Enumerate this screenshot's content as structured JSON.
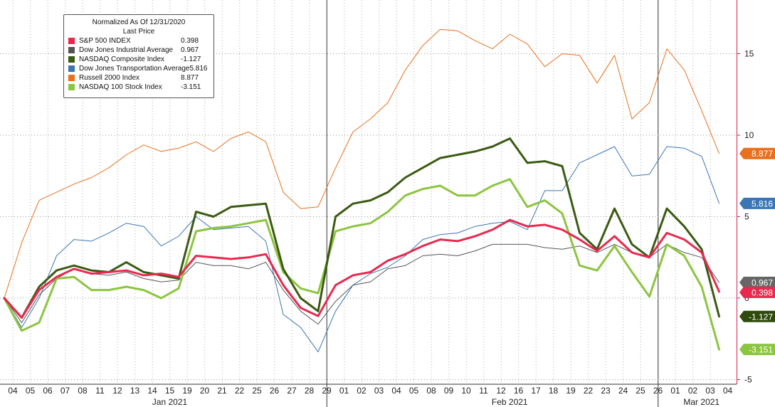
{
  "chart_data": {
    "type": "line",
    "title": "Normalized As Of 12/31/2020",
    "subtitle": "Last Price",
    "dates": [
      "04",
      "05",
      "06",
      "07",
      "08",
      "11",
      "12",
      "13",
      "14",
      "15",
      "19",
      "20",
      "21",
      "22",
      "25",
      "26",
      "27",
      "28",
      "29",
      "01",
      "02",
      "03",
      "04",
      "05",
      "08",
      "09",
      "10",
      "11",
      "12",
      "16",
      "17",
      "18",
      "19",
      "22",
      "23",
      "24",
      "25",
      "26",
      "01",
      "02",
      "03",
      "04"
    ],
    "month_labels": [
      {
        "label": "Jan 2021",
        "center_index": 9
      },
      {
        "label": "Feb 2021",
        "center_index": 28.5
      },
      {
        "label": "Mar 2021",
        "center_index": 39.5
      }
    ],
    "month_starts": [
      0,
      19,
      38
    ],
    "ylim": [
      -5,
      19
    ],
    "y_ticks": [
      "-5",
      "0",
      "5",
      "10",
      "15"
    ],
    "y_tick_values": [
      -5,
      0,
      5,
      10,
      15
    ],
    "grid": true,
    "legend_position": "top-left",
    "series": [
      {
        "name": "S&P 500 INDEX",
        "color": "#e8294f",
        "width": 3,
        "last": "0.398",
        "label_color": "#e8294f",
        "values": [
          0.0,
          -1.2,
          0.5,
          1.3,
          1.8,
          1.5,
          1.6,
          1.7,
          1.4,
          1.5,
          1.3,
          2.6,
          2.5,
          2.4,
          2.5,
          2.7,
          0.8,
          -0.6,
          -1.1,
          0.8,
          1.4,
          1.6,
          2.3,
          2.7,
          3.2,
          3.6,
          3.5,
          3.8,
          4.2,
          4.8,
          4.4,
          4.5,
          4.2,
          3.6,
          2.9,
          3.8,
          2.8,
          2.5,
          4.0,
          3.6,
          2.8,
          0.4
        ]
      },
      {
        "name": "Dow Jones Industrial Average",
        "color": "#555555",
        "width": 1,
        "last": "0.967",
        "label_color": "#666666",
        "values": [
          0.0,
          -1.5,
          0.2,
          1.2,
          1.8,
          1.5,
          1.4,
          1.6,
          1.2,
          1.0,
          1.1,
          2.2,
          2.0,
          2.0,
          1.8,
          2.2,
          0.5,
          -0.8,
          -1.6,
          -0.2,
          0.8,
          1.0,
          1.8,
          2.0,
          2.6,
          2.7,
          2.6,
          2.9,
          3.3,
          3.3,
          3.3,
          3.1,
          3.0,
          3.2,
          2.8,
          3.3,
          2.8,
          2.5,
          3.3,
          2.8,
          2.5,
          0.967
        ]
      },
      {
        "name": "NASDAQ Composite Index",
        "color": "#3b5a12",
        "width": 3,
        "last": "-1.127",
        "label_color": "#2e4a0c",
        "values": [
          0.0,
          -1.2,
          0.7,
          1.7,
          2.0,
          1.7,
          1.6,
          2.2,
          1.6,
          1.4,
          1.2,
          5.3,
          5.0,
          5.6,
          5.7,
          5.8,
          1.8,
          0.0,
          -0.8,
          5.0,
          5.8,
          6.0,
          6.5,
          7.4,
          8.0,
          8.6,
          8.8,
          9.0,
          9.3,
          9.8,
          8.3,
          8.4,
          8.1,
          4.0,
          3.0,
          5.5,
          3.3,
          2.5,
          5.5,
          4.4,
          3.0,
          -1.127
        ]
      },
      {
        "name": "Dow Jones Transportation Average",
        "color": "#3a76b5",
        "width": 1,
        "last": "5.816",
        "label_color": "#3a76b5",
        "values": [
          0.0,
          -1.8,
          0.0,
          2.6,
          3.6,
          3.5,
          4.0,
          4.6,
          4.4,
          3.2,
          3.8,
          5.0,
          4.2,
          4.3,
          4.4,
          3.5,
          -1.0,
          -1.8,
          -3.3,
          -0.8,
          0.8,
          1.5,
          1.9,
          2.6,
          3.6,
          3.9,
          4.0,
          4.4,
          4.6,
          4.7,
          4.2,
          6.6,
          6.6,
          8.3,
          8.8,
          9.3,
          7.5,
          7.6,
          9.3,
          9.2,
          8.7,
          5.816
        ]
      },
      {
        "name": "Russell 2000 Index",
        "color": "#e8701e",
        "width": 1,
        "last": "8.877",
        "label_color": "#e8701e",
        "values": [
          0.0,
          3.4,
          6.0,
          6.5,
          7.0,
          7.4,
          8.0,
          8.8,
          9.4,
          9.0,
          9.2,
          9.6,
          9.0,
          9.8,
          10.2,
          9.6,
          6.5,
          5.5,
          5.6,
          8.0,
          10.2,
          11.0,
          12.0,
          14.0,
          15.5,
          16.5,
          16.4,
          15.8,
          15.3,
          16.2,
          15.6,
          14.2,
          15.0,
          14.9,
          13.2,
          14.9,
          11.0,
          12.0,
          15.3,
          14.0,
          11.5,
          8.877
        ]
      },
      {
        "name": "NASDAQ 100 Stock Index",
        "color": "#8cc53f",
        "width": 3,
        "last": "-3.151",
        "label_color": "#8cc53f",
        "values": [
          0.0,
          -2.0,
          -1.5,
          1.2,
          1.3,
          0.5,
          0.5,
          0.7,
          0.5,
          0.0,
          0.6,
          4.1,
          4.3,
          4.4,
          4.6,
          4.8,
          1.6,
          0.6,
          0.3,
          4.1,
          4.4,
          4.6,
          5.3,
          6.3,
          6.7,
          6.9,
          6.3,
          6.3,
          6.9,
          7.3,
          5.6,
          6.0,
          5.2,
          2.0,
          1.7,
          3.2,
          1.6,
          0.1,
          3.3,
          2.6,
          0.7,
          -3.151
        ]
      }
    ]
  }
}
